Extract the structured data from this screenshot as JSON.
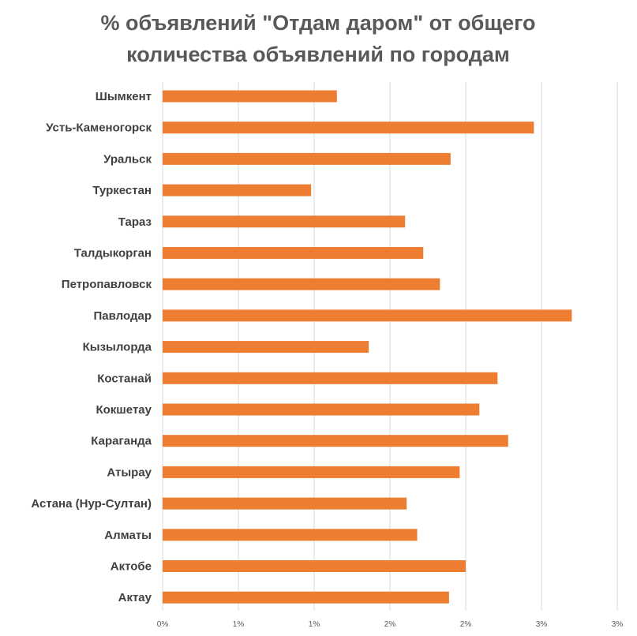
{
  "chart_data": {
    "type": "bar",
    "orientation": "horizontal",
    "title_lines": [
      "% объявлений \"Отдам даром\" от общего",
      "количества объявлений по городам"
    ],
    "categories": [
      "Шымкент",
      "Усть-Каменогорск",
      "Уральск",
      "Туркестан",
      "Тараз",
      "Талдыкорган",
      "Петропавловск",
      "Павлодар",
      "Кызылорда",
      "Костанай",
      "Кокшетау",
      "Караганда",
      "Атырау",
      "Астана (Нур-Султан)",
      "Алматы",
      "Актобе",
      "Актау"
    ],
    "values": [
      1.15,
      2.45,
      1.9,
      0.98,
      1.6,
      1.72,
      1.83,
      2.7,
      1.36,
      2.21,
      2.09,
      2.28,
      1.96,
      1.61,
      1.68,
      2.0,
      1.89
    ],
    "value_unit": "%",
    "xlim": [
      0,
      3.0
    ],
    "x_tick_values": [
      0,
      0.5,
      1.0,
      1.5,
      2.0,
      2.5,
      3.0
    ],
    "x_tick_labels": [
      "0%",
      "1%",
      "1%",
      "2%",
      "2%",
      "3%",
      "3%"
    ],
    "grid": "vertical",
    "legend": "none",
    "bar_color": "#ed7d31",
    "grid_color": "#d9d9d9"
  }
}
